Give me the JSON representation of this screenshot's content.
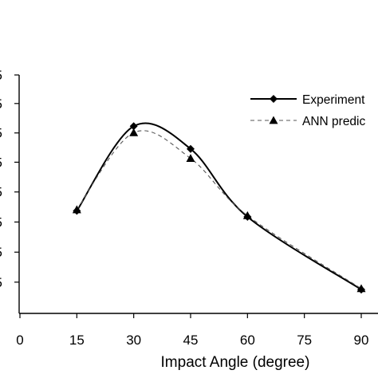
{
  "chart_data": {
    "type": "line",
    "xlabel": "Impact Angle (degree)",
    "ylabel": "",
    "xlim": [
      0,
      90
    ],
    "x_ticks": [
      "0",
      "15",
      "30",
      "45",
      "60",
      "75",
      "90"
    ],
    "y_tick_labels_partial": [
      "5",
      "5",
      "5",
      "5",
      "5",
      "5",
      "5",
      "5"
    ],
    "series": [
      {
        "name": "Experiment",
        "marker": "diamond",
        "line_style": "solid",
        "color": "#000000",
        "x": [
          15,
          30,
          45,
          60,
          90
        ],
        "y": [
          0.43,
          0.785,
          0.69,
          0.405,
          0.1
        ]
      },
      {
        "name": "ANN predic",
        "marker": "triangle",
        "line_style": "dashed",
        "color": "#555555",
        "x": [
          15,
          30,
          45,
          60,
          90
        ],
        "y": [
          0.435,
          0.758,
          0.65,
          0.41,
          0.104
        ]
      }
    ],
    "grid": false,
    "legend_placement": "top-right"
  }
}
